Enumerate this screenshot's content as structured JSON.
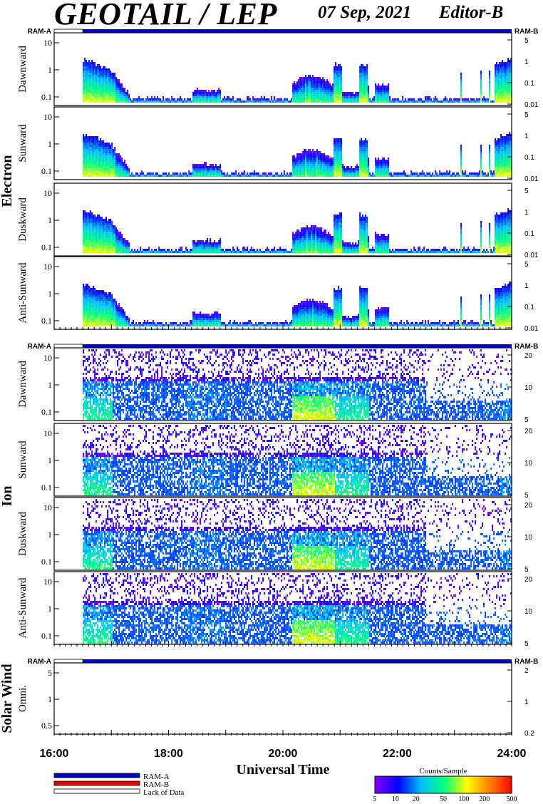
{
  "header": {
    "title": "GEOTAIL / LEP",
    "date": "07 Sep, 2021",
    "editor": "Editor-B"
  },
  "colors": {
    "ram_a": "#0000c8",
    "ram_b": "#e00000",
    "lack_of_data": "#ffffff"
  },
  "chart_data": {
    "type": "heatmap",
    "xlabel": "Universal Time",
    "x_ticks": [
      "16:00",
      "18:00",
      "20:00",
      "22:00",
      "24:00"
    ],
    "xlim_hours": [
      16,
      24
    ],
    "data_start_hour": 16.5,
    "ram_bar_left_label": "RAM-A",
    "ram_bar_right_label": "RAM-B",
    "groups": [
      {
        "name": "Electron",
        "panels": [
          {
            "label": "Dawnward",
            "left_ticks": [
              "10",
              "1",
              "0.1"
            ],
            "right_ticks": [
              "5",
              "1",
              "0.1",
              "0.01"
            ]
          },
          {
            "label": "Sunward",
            "left_ticks": [
              "10",
              "1",
              "0.1"
            ],
            "right_ticks": [
              "5",
              "1",
              "0.1",
              "0.01"
            ]
          },
          {
            "label": "Duskward",
            "left_ticks": [
              "10",
              "1",
              "0.1"
            ],
            "right_ticks": [
              "5",
              "1",
              "0.1",
              "0.01"
            ]
          },
          {
            "label": "Anti-Sunward",
            "left_ticks": [
              "10",
              "1",
              "0.1"
            ],
            "right_ticks": [
              "5",
              "1",
              "0.1",
              "0.01"
            ]
          }
        ]
      },
      {
        "name": "Ion",
        "panels": [
          {
            "label": "Dawnward",
            "left_ticks": [
              "10",
              "1",
              "0.1"
            ],
            "right_ticks": [
              "20",
              "10",
              "5"
            ]
          },
          {
            "label": "Sunward",
            "left_ticks": [
              "10",
              "1",
              "0.1"
            ],
            "right_ticks": [
              "20",
              "10",
              "5"
            ]
          },
          {
            "label": "Duskward",
            "left_ticks": [
              "10",
              "1",
              "0.1"
            ],
            "right_ticks": [
              "20",
              "10",
              "5"
            ]
          },
          {
            "label": "Anti-Sunward",
            "left_ticks": [
              "10",
              "1",
              "0.1"
            ],
            "right_ticks": [
              "20",
              "10",
              "5"
            ]
          }
        ]
      },
      {
        "name": "Solar Wind",
        "panels": [
          {
            "label": "Omni.",
            "left_ticks": [
              "5",
              "1",
              "0.5"
            ],
            "right_ticks": [
              "2",
              "1",
              "0.2"
            ]
          }
        ]
      }
    ],
    "legend": [
      {
        "label": "RAM-A",
        "color": "#0000c8"
      },
      {
        "label": "RAM-B",
        "color": "#e00000"
      },
      {
        "label": "Lack of Data",
        "color": "#ffffff"
      }
    ],
    "colorbar": {
      "title": "Counts/Sample",
      "ticks": [
        "5",
        "10",
        "20",
        "50",
        "100",
        "200",
        "500"
      ],
      "stops": [
        "#8000ff",
        "#0000ff",
        "#00c0ff",
        "#00ff80",
        "#ffff00",
        "#ff8000",
        "#ff0000"
      ]
    }
  }
}
